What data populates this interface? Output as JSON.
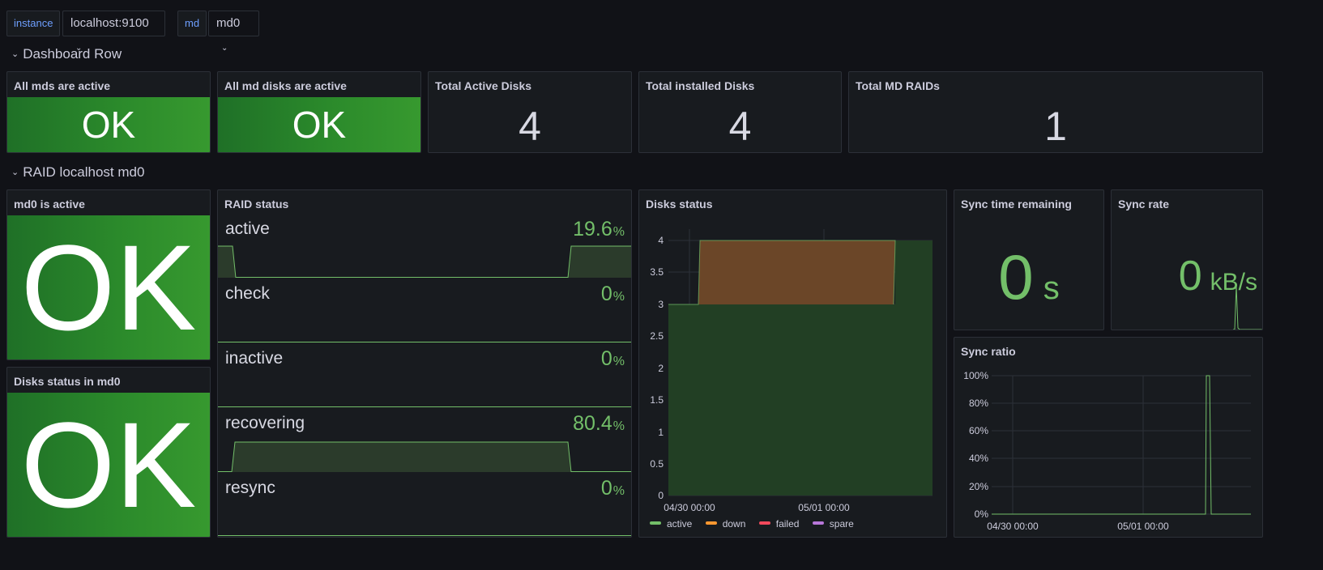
{
  "variables": [
    {
      "label": "instance",
      "value": "localhost:9100"
    },
    {
      "label": "md",
      "value": "md0"
    }
  ],
  "rows": {
    "row1": "Dashboard Row",
    "row2": "RAID localhost md0"
  },
  "panels": {
    "all_mds": {
      "title": "All mds are active",
      "value": "OK"
    },
    "all_md_disks": {
      "title": "All md disks are active",
      "value": "OK"
    },
    "total_active": {
      "title": "Total Active Disks",
      "value": "4"
    },
    "total_installed": {
      "title": "Total installed Disks",
      "value": "4"
    },
    "total_raids": {
      "title": "Total MD RAIDs",
      "value": "1"
    },
    "md0_active": {
      "title": "md0 is active",
      "value": "OK"
    },
    "disks_status_md0": {
      "title": "Disks status in md0",
      "value": "OK"
    },
    "raid_status": {
      "title": "RAID status",
      "items": [
        {
          "name": "active",
          "value": "19.6",
          "unit": "%"
        },
        {
          "name": "check",
          "value": "0",
          "unit": "%"
        },
        {
          "name": "inactive",
          "value": "0",
          "unit": "%"
        },
        {
          "name": "recovering",
          "value": "80.4",
          "unit": "%"
        },
        {
          "name": "resync",
          "value": "0",
          "unit": "%"
        }
      ]
    },
    "disks_status": {
      "title": "Disks status",
      "legend": [
        "active",
        "down",
        "failed",
        "spare"
      ]
    },
    "sync_time": {
      "title": "Sync time remaining",
      "value": "0",
      "unit": "s"
    },
    "sync_rate": {
      "title": "Sync rate",
      "value": "0",
      "unit": "kB/s"
    },
    "sync_ratio": {
      "title": "Sync ratio"
    }
  },
  "colors": {
    "ok_green": "#37992f",
    "series_active": "#73bf69",
    "series_down": "#ff9830",
    "series_failed": "#f2495c",
    "series_spare": "#b877d9"
  },
  "chart_data": [
    {
      "type": "area",
      "title": "Disks status",
      "x_ticks": [
        "04/30 00:00",
        "05/01 00:00"
      ],
      "y_ticks": [
        "0",
        "0.5",
        "1",
        "1.5",
        "2",
        "2.5",
        "3",
        "3.5",
        "4"
      ],
      "ylim": [
        0,
        4
      ],
      "series": [
        {
          "name": "active",
          "values": [
            3,
            3,
            3,
            4
          ]
        },
        {
          "name": "down",
          "values": [
            0,
            1,
            1,
            0
          ]
        },
        {
          "name": "failed",
          "values": [
            0,
            0,
            0,
            0
          ]
        },
        {
          "name": "spare",
          "values": [
            0,
            0,
            0,
            0
          ]
        }
      ]
    },
    {
      "type": "line",
      "title": "Sync ratio",
      "x_ticks": [
        "04/30 00:00",
        "05/01 00:00"
      ],
      "y_ticks": [
        "0%",
        "20%",
        "40%",
        "60%",
        "80%",
        "100%"
      ],
      "ylim": [
        0,
        1
      ],
      "series": [
        {
          "values": [
            0,
            0,
            1,
            0
          ]
        }
      ]
    }
  ]
}
